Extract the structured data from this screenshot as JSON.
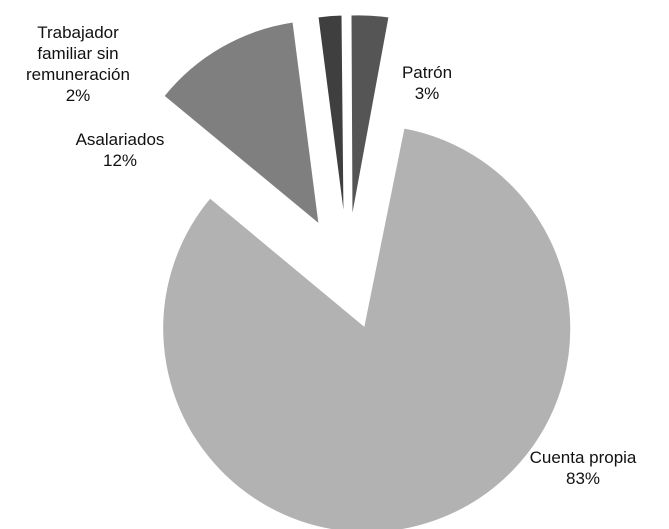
{
  "chart_data": {
    "type": "pie",
    "title": "",
    "slices": [
      {
        "label": "Patrón",
        "value": 3,
        "value_text": "3%",
        "color": "#555555"
      },
      {
        "label": "Cuenta propia",
        "value": 83,
        "value_text": "83%",
        "color": "#b2b2b2"
      },
      {
        "label": "Asalariados",
        "value": 12,
        "value_text": "12%",
        "color": "#7f7f7f"
      },
      {
        "label": "Trabajador familiar sin remuneración",
        "label_lines": [
          "Trabajador",
          "familiar sin",
          "remuneración"
        ],
        "value": 2,
        "value_text": "2%",
        "color": "#3f3f3f"
      }
    ],
    "exploded": true,
    "legend": "none"
  }
}
